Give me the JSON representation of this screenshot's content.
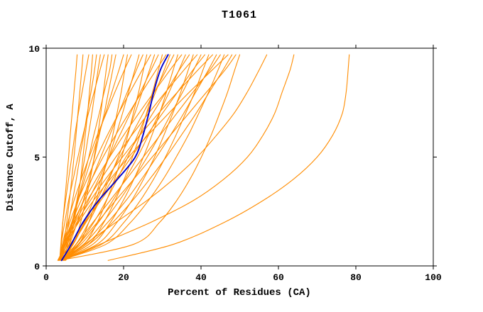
{
  "chart_data": {
    "type": "line",
    "title": "T1061",
    "xlabel": "Percent of Residues (CA)",
    "ylabel": "Distance Cutoff, A",
    "xlim": [
      0,
      100
    ],
    "ylim": [
      0,
      10
    ],
    "xticks": [
      0,
      20,
      40,
      60,
      80,
      100
    ],
    "yticks": [
      0,
      5,
      10
    ],
    "grid": false,
    "legend": "none",
    "colors": {
      "model": "#ff8c00",
      "highlight": "#0000cc",
      "frame": "#000000",
      "background": "#ffffff"
    },
    "y_samples": [
      0.25,
      1,
      2,
      3,
      4,
      5,
      6,
      7,
      8,
      9,
      9.7
    ],
    "series": [
      {
        "role": "model",
        "x": [
          3.5,
          3.9,
          4.3,
          4.8,
          5.3,
          5.8,
          6.2,
          6.7,
          7.2,
          7.7,
          8.0
        ]
      },
      {
        "role": "model",
        "x": [
          3.2,
          4.5,
          5.3,
          6.0,
          6.6,
          7.2,
          7.7,
          8.2,
          8.7,
          9.2,
          9.5
        ]
      },
      {
        "role": "model",
        "x": [
          3.5,
          3.8,
          4.3,
          5.0,
          5.8,
          6.6,
          7.4,
          8.3,
          9.3,
          10.3,
          11.0
        ]
      },
      {
        "role": "model",
        "x": [
          3.5,
          5.9,
          7.2,
          8.1,
          8.9,
          9.5,
          10.1,
          10.7,
          11.2,
          11.7,
          12.0
        ]
      },
      {
        "role": "model",
        "x": [
          4.0,
          4.8,
          5.8,
          6.8,
          7.8,
          8.7,
          9.7,
          10.6,
          11.6,
          12.5,
          13.0
        ]
      },
      {
        "role": "model",
        "x": [
          3.5,
          5.3,
          6.7,
          7.9,
          9.0,
          10.0,
          10.9,
          11.8,
          12.6,
          13.4,
          14.0
        ]
      },
      {
        "role": "model",
        "x": [
          3.5,
          3.9,
          4.8,
          5.8,
          7.0,
          8.2,
          9.5,
          10.9,
          12.4,
          13.9,
          15.0
        ]
      },
      {
        "role": "model",
        "x": [
          3.5,
          7.0,
          8.9,
          10.2,
          11.4,
          12.4,
          13.3,
          14.1,
          14.8,
          15.5,
          16.0
        ]
      },
      {
        "role": "model",
        "x": [
          4.5,
          5.6,
          6.9,
          8.2,
          9.6,
          11.0,
          12.3,
          13.7,
          15.0,
          16.4,
          17.0
        ]
      },
      {
        "role": "model",
        "x": [
          3.5,
          6.0,
          8.0,
          9.6,
          11.1,
          12.5,
          13.7,
          15.0,
          16.1,
          17.2,
          18.0
        ]
      },
      {
        "role": "model",
        "x": [
          3.5,
          4.8,
          6.6,
          8.3,
          10.0,
          11.8,
          13.5,
          15.3,
          17.0,
          18.8,
          20.0
        ]
      },
      {
        "role": "model",
        "x": [
          3.5,
          8.4,
          11.0,
          12.9,
          14.5,
          15.9,
          17.2,
          18.3,
          19.4,
          20.3,
          21.0
        ]
      },
      {
        "role": "model",
        "x": [
          3.5,
          4.2,
          5.6,
          7.2,
          9.1,
          11.1,
          13.2,
          15.5,
          17.8,
          20.2,
          22.0
        ]
      },
      {
        "role": "model",
        "x": [
          3.5,
          7.0,
          9.8,
          12.2,
          14.2,
          16.2,
          18.0,
          19.7,
          21.3,
          22.9,
          24.0
        ]
      },
      {
        "role": "model",
        "x": [
          3.0,
          5.0,
          7.3,
          9.6,
          11.8,
          14.1,
          16.4,
          18.7,
          21.0,
          23.3,
          25.0
        ]
      },
      {
        "role": "model",
        "x": [
          3.5,
          9.8,
          13.2,
          15.6,
          17.7,
          19.5,
          21.1,
          22.5,
          23.9,
          25.1,
          26.0
        ]
      },
      {
        "role": "model",
        "x": [
          3.5,
          4.4,
          6.1,
          8.2,
          10.6,
          13.1,
          15.8,
          18.7,
          21.7,
          24.8,
          27.0
        ]
      },
      {
        "role": "model",
        "x": [
          3.5,
          7.7,
          11.0,
          13.8,
          16.3,
          18.6,
          20.8,
          22.9,
          24.8,
          26.7,
          28.0
        ]
      },
      {
        "role": "model",
        "x": [
          3.5,
          5.5,
          8.2,
          10.9,
          13.6,
          16.3,
          19.0,
          21.7,
          24.4,
          27.1,
          29.0
        ]
      },
      {
        "role": "model",
        "x": [
          3.5,
          11.0,
          14.9,
          17.8,
          20.2,
          22.3,
          24.2,
          25.9,
          27.5,
          29.0,
          30.0
        ]
      },
      {
        "role": "model",
        "x": [
          3.5,
          4.5,
          6.6,
          9.0,
          11.8,
          14.7,
          17.9,
          21.3,
          24.8,
          28.4,
          31.0
        ]
      },
      {
        "role": "model",
        "x": [
          3.5,
          8.3,
          12.3,
          15.5,
          18.4,
          21.1,
          23.6,
          26.0,
          28.3,
          30.5,
          32.0
        ]
      },
      {
        "role": "model",
        "x": [
          4.8,
          6.9,
          10.0,
          13.0,
          16.0,
          19.0,
          22.0,
          25.0,
          28.0,
          31.0,
          33.0
        ]
      },
      {
        "role": "model",
        "x": [
          3.5,
          12.1,
          16.6,
          19.9,
          22.7,
          25.1,
          27.3,
          29.3,
          31.1,
          32.8,
          34.0
        ]
      },
      {
        "role": "model",
        "x": [
          3.5,
          4.7,
          7.0,
          9.8,
          13.0,
          16.4,
          20.0,
          23.9,
          27.9,
          32.0,
          35.0
        ]
      },
      {
        "role": "model",
        "x": [
          3.5,
          9.0,
          13.5,
          17.2,
          20.5,
          23.6,
          26.4,
          29.2,
          31.8,
          34.3,
          36.0
        ]
      },
      {
        "role": "model",
        "x": [
          4.2,
          6.8,
          10.3,
          13.7,
          17.2,
          20.6,
          24.1,
          27.5,
          31.0,
          34.4,
          37.0
        ]
      },
      {
        "role": "model",
        "x": [
          3.5,
          13.2,
          18.3,
          22.1,
          25.2,
          28.0,
          30.4,
          32.7,
          34.8,
          36.7,
          38.0
        ]
      },
      {
        "role": "model",
        "x": [
          3.5,
          4.8,
          7.5,
          10.6,
          14.2,
          18.0,
          22.1,
          26.4,
          30.9,
          35.6,
          39.0
        ]
      },
      {
        "role": "model",
        "x": [
          3.5,
          9.7,
          14.7,
          18.9,
          22.6,
          26.1,
          29.3,
          32.3,
          35.3,
          38.1,
          40.0
        ]
      },
      {
        "role": "model",
        "x": [
          3.2,
          6.2,
          10.1,
          14.1,
          18.1,
          22.0,
          26.0,
          30.0,
          34.0,
          37.9,
          41.0
        ]
      },
      {
        "role": "model",
        "x": [
          3.5,
          14.4,
          20.1,
          24.3,
          27.8,
          30.8,
          33.5,
          36.0,
          38.4,
          40.5,
          42.0
        ]
      },
      {
        "role": "model",
        "x": [
          3.5,
          5.0,
          7.9,
          11.4,
          15.4,
          19.7,
          24.2,
          29.0,
          34.0,
          39.2,
          43.0
        ]
      },
      {
        "role": "model",
        "x": [
          3.5,
          10.4,
          15.9,
          20.6,
          24.7,
          28.5,
          32.1,
          35.5,
          38.7,
          41.9,
          44.0
        ]
      },
      {
        "role": "model",
        "x": [
          4.6,
          7.8,
          12.1,
          16.5,
          20.8,
          25.1,
          29.4,
          33.7,
          38.0,
          42.3,
          45.0
        ]
      },
      {
        "role": "model",
        "x": [
          3.5,
          15.5,
          21.8,
          26.4,
          30.3,
          33.6,
          36.7,
          39.4,
          42.0,
          44.4,
          46.0
        ]
      },
      {
        "role": "model",
        "x": [
          3.5,
          5.1,
          8.4,
          12.2,
          16.6,
          21.3,
          26.3,
          31.6,
          37.1,
          42.9,
          47.0
        ]
      },
      {
        "role": "model",
        "x": [
          3.5,
          11.1,
          17.2,
          22.3,
          26.8,
          31.0,
          34.9,
          38.7,
          42.2,
          45.7,
          48.0
        ]
      },
      {
        "role": "model",
        "x": [
          5.0,
          8.5,
          13.2,
          17.9,
          22.7,
          27.4,
          32.1,
          36.8,
          41.5,
          46.2,
          49.0
        ]
      },
      {
        "role": "model",
        "x": [
          3.5,
          22.7,
          29.3,
          33.7,
          37.2,
          40.1,
          42.6,
          44.8,
          46.9,
          48.7,
          50.0
        ]
      },
      {
        "role": "model",
        "x": [
          4.0,
          10.0,
          18.0,
          26.0,
          33.0,
          39.0,
          44.0,
          48.5,
          52.0,
          55.0,
          57.0
        ]
      },
      {
        "role": "model",
        "x": [
          4.5,
          14.0,
          27.0,
          38.0,
          46.0,
          52.0,
          56.0,
          59.0,
          61.0,
          63.0,
          64.0
        ]
      },
      {
        "role": "model",
        "x": [
          16.0,
          33.0,
          46.0,
          56.0,
          64.0,
          70.0,
          74.0,
          76.5,
          77.5,
          78.0,
          78.3
        ]
      },
      {
        "role": "highlight",
        "x": [
          4.0,
          6.5,
          9.5,
          13.5,
          18.5,
          23.0,
          25.0,
          26.5,
          27.8,
          29.5,
          31.5
        ]
      }
    ]
  }
}
